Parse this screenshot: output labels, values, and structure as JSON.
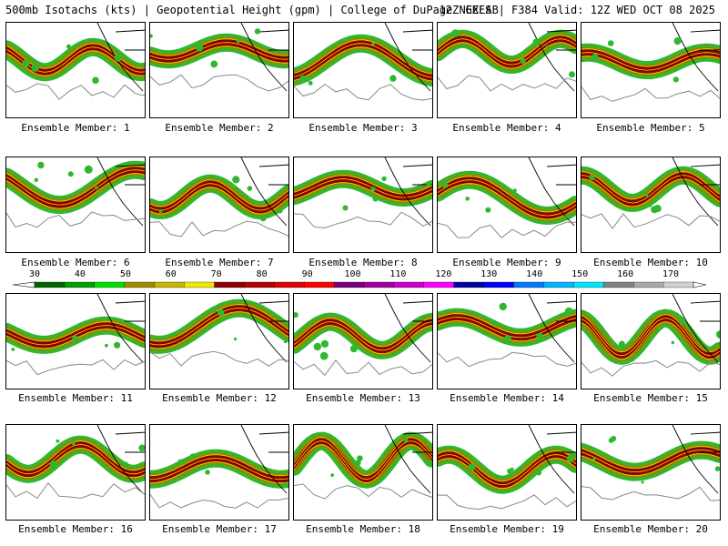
{
  "header": {
    "left": "500mb Isotachs (kts) | Geopotential Height (gpm) | College of DuPage NEXLAB",
    "right": "12Z GEFS | F384 Valid: 12Z WED OCT 08 2025"
  },
  "colorbar": {
    "ticks": [
      "30",
      "40",
      "50",
      "60",
      "70",
      "80",
      "90",
      "100",
      "110",
      "120",
      "130",
      "140",
      "150",
      "160",
      "170"
    ],
    "colors": [
      "#006400",
      "#00a000",
      "#00e000",
      "#a08c00",
      "#c8b400",
      "#f0e600",
      "#8b0000",
      "#b40000",
      "#dc0000",
      "#ff0000",
      "#7a007a",
      "#a000a0",
      "#c800c8",
      "#ff00ff",
      "#0000a0",
      "#0000ff",
      "#0078ff",
      "#00b4ff",
      "#00e6ff",
      "#808080",
      "#a8a8a8",
      "#d0d0d0"
    ]
  },
  "members": [
    {
      "label": "Ensemble Member: 1"
    },
    {
      "label": "Ensemble Member: 2"
    },
    {
      "label": "Ensemble Member: 3"
    },
    {
      "label": "Ensemble Member: 4"
    },
    {
      "label": "Ensemble Member: 5"
    },
    {
      "label": "Ensemble Member: 6"
    },
    {
      "label": "Ensemble Member: 7"
    },
    {
      "label": "Ensemble Member: 8"
    },
    {
      "label": "Ensemble Member: 9"
    },
    {
      "label": "Ensemble Member: 10"
    },
    {
      "label": "Ensemble Member: 11"
    },
    {
      "label": "Ensemble Member: 12"
    },
    {
      "label": "Ensemble Member: 13"
    },
    {
      "label": "Ensemble Member: 14"
    },
    {
      "label": "Ensemble Member: 15"
    },
    {
      "label": "Ensemble Member: 16"
    },
    {
      "label": "Ensemble Member: 17"
    },
    {
      "label": "Ensemble Member: 18"
    },
    {
      "label": "Ensemble Member: 19"
    },
    {
      "label": "Ensemble Member: 20"
    }
  ]
}
